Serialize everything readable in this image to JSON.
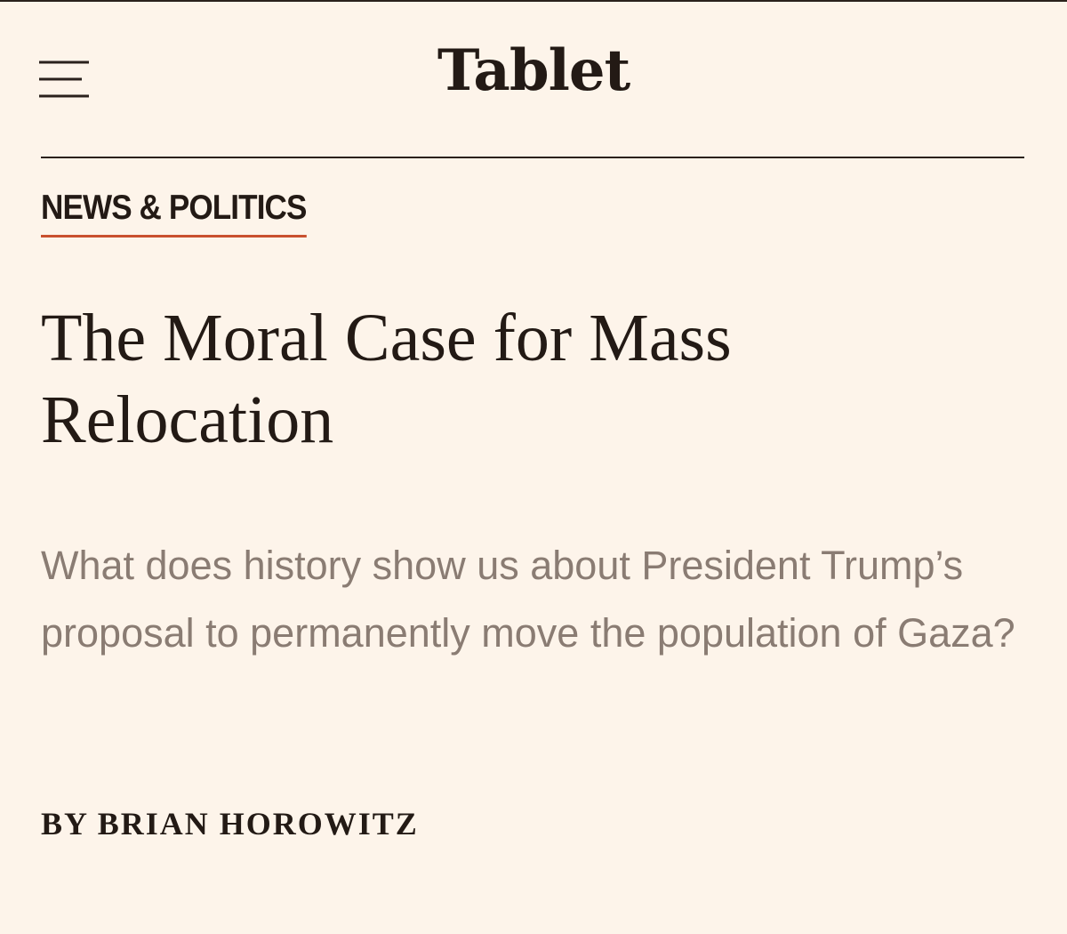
{
  "header": {
    "menu_icon": "hamburger-menu-icon",
    "logo_text": "Tablet"
  },
  "article": {
    "section": "NEWS & POLITICS",
    "headline": "The Moral Case for Mass Relocation",
    "dek": "What does history show us about President Trump’s proposal to permanently move the population of Gaza?",
    "byline_prefix": "BY",
    "author": "BRIAN HOROWITZ"
  },
  "colors": {
    "background": "#fdf4ea",
    "text": "#231a15",
    "dek_text": "#8a7c73",
    "section_underline": "#c9502e"
  }
}
